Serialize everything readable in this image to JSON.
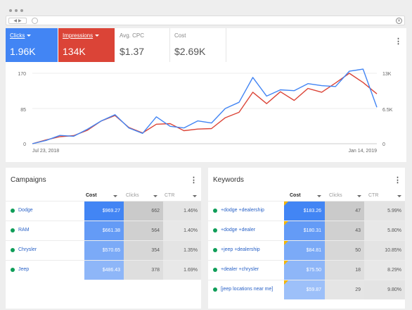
{
  "metrics": {
    "clicks": {
      "label": "Clicks",
      "value": "1.96K"
    },
    "impressions": {
      "label": "Impressions",
      "value": "134K"
    },
    "avg_cpc": {
      "label": "Avg. CPC",
      "value": "$1.37"
    },
    "cost": {
      "label": "Cost",
      "value": "$2.69K"
    }
  },
  "chart_data": {
    "type": "line",
    "x_labels": [
      "Jul 23, 2018",
      "Jan 14, 2019"
    ],
    "y_left_ticks": [
      "170",
      "85",
      "0"
    ],
    "y_right_ticks": [
      "13K",
      "6.5K",
      "0"
    ],
    "ylim_left": [
      0,
      170
    ],
    "ylim_right": [
      0,
      13000
    ],
    "series": [
      {
        "role": "clicks",
        "axis": "left",
        "color": "#4285f4",
        "values": [
          0,
          8,
          20,
          18,
          35,
          55,
          70,
          38,
          25,
          65,
          42,
          38,
          55,
          50,
          85,
          100,
          160,
          115,
          130,
          128,
          145,
          140,
          138,
          175,
          180,
          88
        ]
      },
      {
        "role": "impressions",
        "axis": "right",
        "color": "#db4437",
        "values": [
          0,
          700,
          1300,
          1500,
          2500,
          4200,
          5200,
          3000,
          2000,
          3600,
          3700,
          2400,
          2700,
          2800,
          4800,
          5800,
          9500,
          7400,
          9600,
          8000,
          10200,
          9500,
          11200,
          13000,
          11300,
          9200
        ]
      }
    ]
  },
  "campaigns": {
    "title": "Campaigns",
    "columns": [
      "Cost",
      "Clicks",
      "CTR"
    ],
    "rows": [
      {
        "name": "Dodge",
        "cost": "$969.27",
        "clicks": "662",
        "ctr": "1.46%"
      },
      {
        "name": "RAM",
        "cost": "$661.38",
        "clicks": "564",
        "ctr": "1.40%"
      },
      {
        "name": "Chrysler",
        "cost": "$570.65",
        "clicks": "354",
        "ctr": "1.35%"
      },
      {
        "name": "Jeep",
        "cost": "$486.43",
        "clicks": "378",
        "ctr": "1.69%"
      }
    ]
  },
  "keywords": {
    "title": "Keywords",
    "columns": [
      "Cost",
      "Clicks",
      "CTR"
    ],
    "rows": [
      {
        "name": "+dodge +dealership",
        "cost": "$183.26",
        "clicks": "47",
        "ctr": "5.99%"
      },
      {
        "name": "+dodge +dealer",
        "cost": "$180.31",
        "clicks": "43",
        "ctr": "5.80%"
      },
      {
        "name": "+jeep +dealership",
        "cost": "$84.81",
        "clicks": "50",
        "ctr": "10.85%"
      },
      {
        "name": "+dealer +chrysler",
        "cost": "$75.50",
        "clicks": "18",
        "ctr": "8.29%"
      },
      {
        "name": "[jeep locations near me]",
        "cost": "$59.87",
        "clicks": "29",
        "ctr": "9.80%"
      }
    ]
  },
  "colors": {
    "clicks": "#4285f4",
    "impressions": "#db4437",
    "status_enabled": "#0f9d58",
    "flag": "#f4b400"
  }
}
